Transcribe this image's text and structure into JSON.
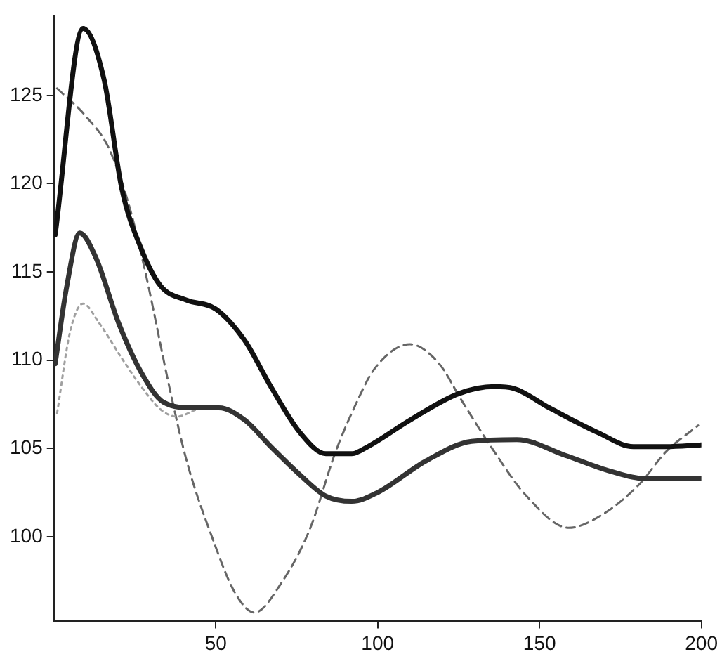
{
  "chart_data": {
    "type": "line",
    "xlim": [
      0,
      200
    ],
    "xticks": [
      50,
      100,
      150,
      200
    ],
    "ylim": [
      95.2,
      129.5
    ],
    "yticks": [
      100,
      105,
      110,
      115,
      120,
      125
    ],
    "grid": false,
    "legend": false,
    "marker": "none",
    "series": [
      {
        "color": "#111111",
        "line_style": "solid",
        "x": [
          0.4,
          9,
          15.5,
          21,
          27,
          33,
          41,
          50,
          59,
          67,
          76,
          84,
          92,
          97,
          110,
          125,
          136,
          142,
          153,
          168,
          179,
          189,
          200
        ],
        "values": [
          117.1,
          128.8,
          125.9,
          119.7,
          116.3,
          114.2,
          113.4,
          112.9,
          111.1,
          108.5,
          105.9,
          104.7,
          104.7,
          105.1,
          106.6,
          108.1,
          108.5,
          108.4,
          107.3,
          105.9,
          105.1,
          105.1,
          105.2
        ]
      },
      {
        "color": "#333333",
        "line_style": "solid",
        "x": [
          0.4,
          4,
          8,
          13,
          20,
          27,
          34,
          43,
          51,
          59,
          67,
          76,
          84,
          92,
          100,
          115,
          129,
          143,
          158,
          172,
          182,
          200
        ],
        "values": [
          109.8,
          114.2,
          117.2,
          115.8,
          112.1,
          109.3,
          107.6,
          107.3,
          107.3,
          106.6,
          105.1,
          103.5,
          102.3,
          102,
          102.5,
          104.3,
          105.4,
          105.5,
          104.6,
          103.7,
          103.3,
          103.3
        ]
      },
      {
        "color": "#a0a0a0",
        "line_style": "dotted",
        "x": [
          1,
          5,
          9,
          14,
          21,
          27,
          33,
          38,
          44
        ],
        "values": [
          107,
          111.6,
          113.2,
          112.1,
          110.1,
          108.5,
          107.2,
          106.8,
          107.2
        ]
      },
      {
        "color": "#666666",
        "line_style": "dashed",
        "x": [
          1,
          10,
          17,
          23,
          28,
          36,
          41,
          49,
          56,
          62,
          70,
          79,
          87,
          93,
          99,
          110,
          119,
          126,
          135,
          146,
          159,
          169,
          181,
          189,
          199
        ],
        "values": [
          125.4,
          123.8,
          122,
          118.9,
          115.2,
          108.2,
          104.3,
          99.9,
          96.8,
          95.7,
          97.3,
          100.4,
          104.8,
          107.4,
          109.5,
          110.9,
          109.8,
          107.7,
          105.1,
          102.3,
          100.5,
          101.2,
          103,
          104.8,
          106.3
        ]
      }
    ]
  }
}
